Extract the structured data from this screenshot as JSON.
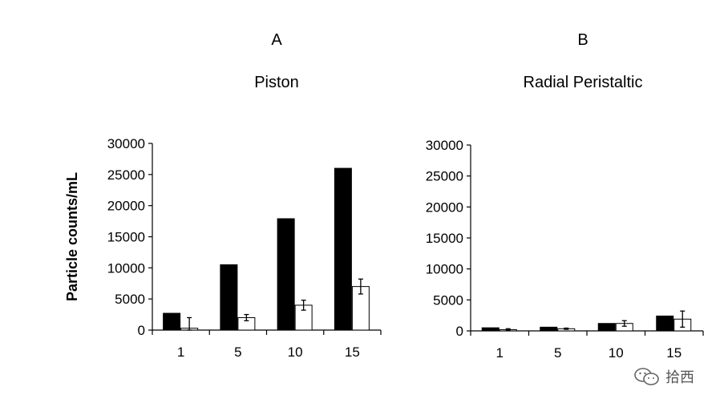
{
  "chart_data": [
    {
      "type": "bar",
      "panel_label": "A",
      "title": "Piston",
      "ylabel": "Particle counts/mL",
      "xlabel": "",
      "ylim": [
        0,
        30000
      ],
      "yticks": [
        "0",
        "5000",
        "10000",
        "15000",
        "20000",
        "25000",
        "30000"
      ],
      "categories": [
        "1",
        "5",
        "10",
        "15"
      ],
      "series": [
        {
          "fill": "#000000",
          "values": [
            2700,
            10500,
            17900,
            26000
          ],
          "errors": [
            0,
            0,
            0,
            0
          ]
        },
        {
          "fill": "#ffffff",
          "values": [
            300,
            2000,
            4000,
            7000
          ],
          "errors": [
            1700,
            500,
            800,
            1200
          ]
        }
      ],
      "grid": false,
      "legend": "none"
    },
    {
      "type": "bar",
      "panel_label": "B",
      "title": "Radial Peristaltic",
      "ylabel": "",
      "xlabel": "",
      "ylim": [
        0,
        30000
      ],
      "yticks": [
        "0",
        "5000",
        "10000",
        "15000",
        "20000",
        "25000",
        "30000"
      ],
      "categories": [
        "1",
        "5",
        "10",
        "15"
      ],
      "series": [
        {
          "fill": "#000000",
          "values": [
            500,
            600,
            1200,
            2400
          ],
          "errors": [
            0,
            0,
            0,
            0
          ]
        },
        {
          "fill": "#ffffff",
          "values": [
            200,
            350,
            1200,
            1900
          ],
          "errors": [
            150,
            100,
            450,
            1300
          ]
        }
      ],
      "grid": false,
      "legend": "none"
    }
  ],
  "watermark": {
    "icon": "wechat-icon",
    "text": "拾西"
  }
}
